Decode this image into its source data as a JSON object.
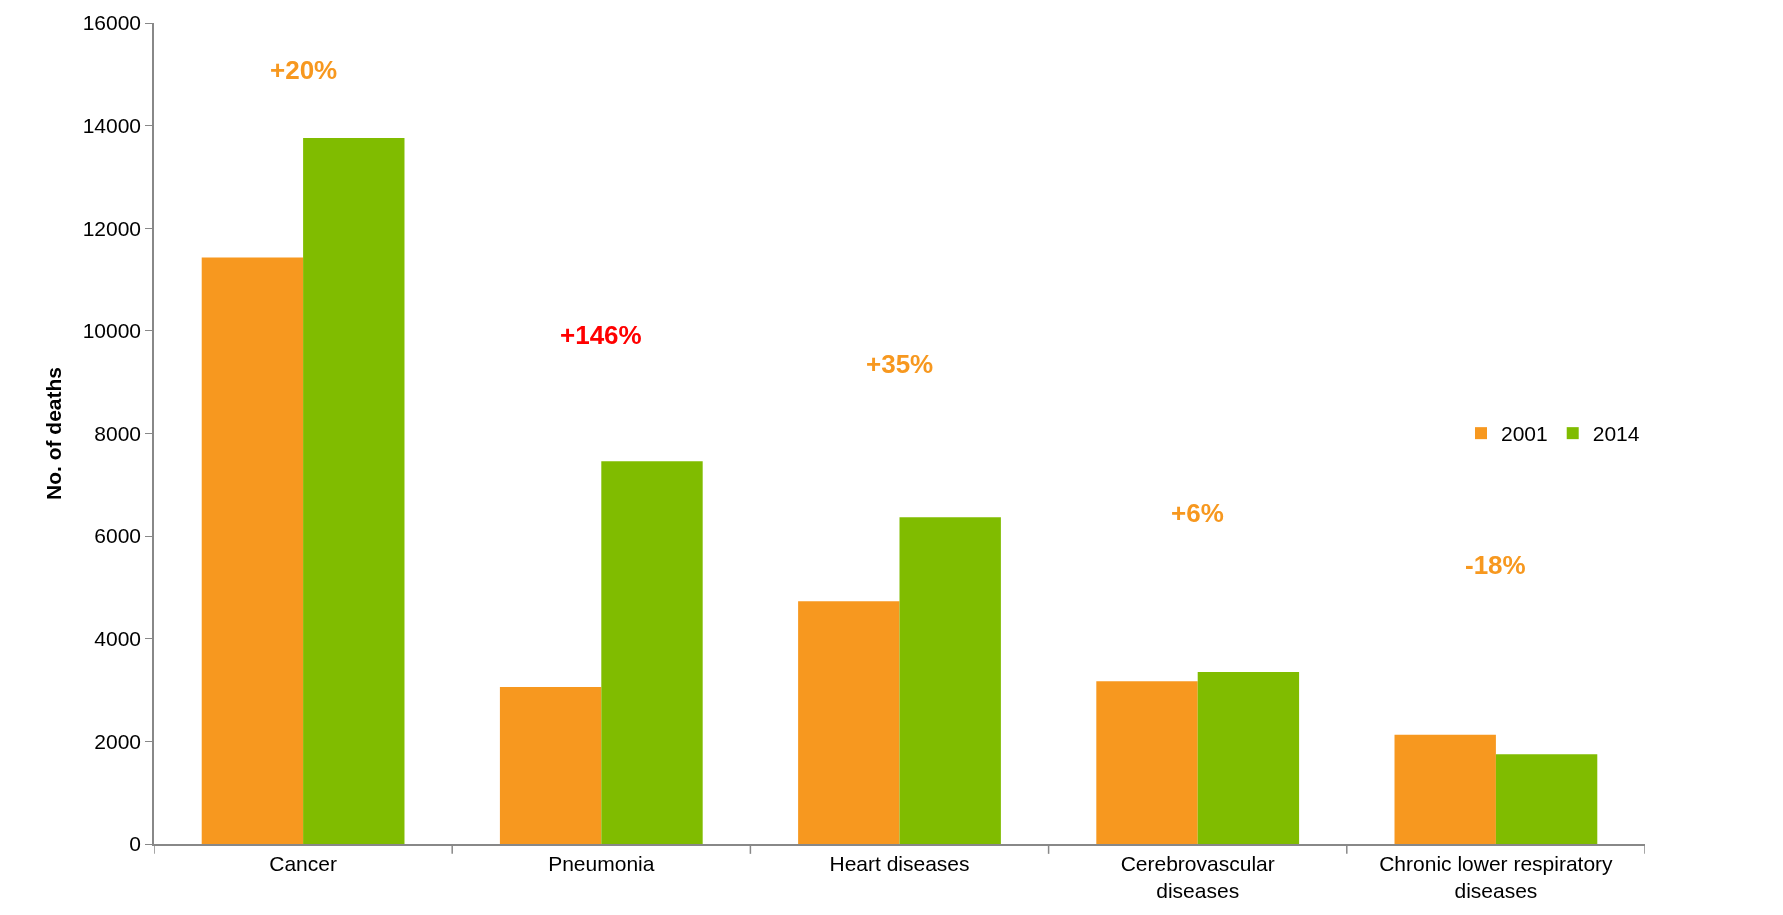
{
  "chart_data": {
    "type": "bar",
    "ylabel": "No. of deaths",
    "categories": [
      "Cancer",
      "Pneumonia",
      "Heart diseases",
      "Cerebrovascular diseases",
      "Chronic lower respiratory diseases"
    ],
    "series": [
      {
        "name": "2001",
        "color": "#f7981f",
        "values": [
          11430,
          3060,
          4730,
          3170,
          2130
        ]
      },
      {
        "name": "2014",
        "color": "#80bc00",
        "values": [
          13760,
          7460,
          6370,
          3350,
          1750
        ]
      }
    ],
    "ylim": [
      0,
      16000
    ],
    "yticks": [
      0,
      2000,
      4000,
      6000,
      8000,
      10000,
      12000,
      14000,
      16000
    ],
    "annotations": [
      "+20%",
      "+146%",
      "+35%",
      "+6%",
      "-18%"
    ],
    "legend": "right"
  }
}
